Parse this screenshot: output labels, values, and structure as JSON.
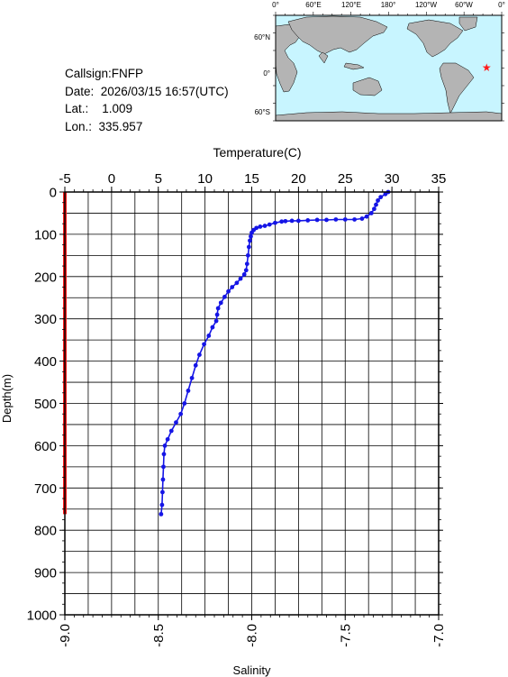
{
  "info": {
    "callsign": "Callsign:FNFP",
    "date": "Date:  2026/03/15 16:57(UTC)",
    "lat": "Lat.:    1.009",
    "lon": "Lon.:  335.957"
  },
  "map": {
    "lon_labels": [
      "0°",
      "60°E",
      "120°E",
      "180°",
      "120°W",
      "60°W",
      "0°"
    ],
    "lat_labels": [
      "60°N",
      "0°",
      "60°S"
    ],
    "ocean_color": "#c8f5ff",
    "land_color": "#b4b4b4",
    "marker": {
      "lon": 335.957,
      "lat": 1.009,
      "color": "#ff1a1a",
      "icon": "star-icon"
    }
  },
  "chart_data": {
    "type": "line",
    "title": "",
    "top_axis": {
      "label": "Temperature(C)",
      "range": [
        -5,
        35
      ],
      "ticks": [
        -5,
        0,
        5,
        10,
        15,
        20,
        25,
        30,
        35
      ]
    },
    "bottom_axis": {
      "label": "Salinity",
      "range": [
        -9.0,
        -7.0
      ],
      "ticks": [
        "-9.0",
        "-8.5",
        "-8.0",
        "-7.5",
        "-7.0"
      ]
    },
    "y_axis": {
      "label": "Depth(m)",
      "range": [
        0,
        1000
      ],
      "inverted": true,
      "ticks": [
        0,
        100,
        200,
        300,
        400,
        500,
        600,
        700,
        800,
        900,
        1000
      ]
    },
    "grid": true,
    "series": [
      {
        "axis": "temperature",
        "color": "#1515e6",
        "markers": true,
        "points": [
          [
            29.6,
            0
          ],
          [
            29.3,
            5
          ],
          [
            28.8,
            12
          ],
          [
            28.5,
            20
          ],
          [
            28.3,
            30
          ],
          [
            28.1,
            40
          ],
          [
            27.8,
            50
          ],
          [
            27.3,
            58
          ],
          [
            26.8,
            63
          ],
          [
            26.0,
            65
          ],
          [
            25.0,
            65
          ],
          [
            24.0,
            65
          ],
          [
            23.0,
            66
          ],
          [
            22.0,
            66
          ],
          [
            21.0,
            67
          ],
          [
            20.0,
            68
          ],
          [
            19.3,
            68
          ],
          [
            18.6,
            69
          ],
          [
            18.2,
            70
          ],
          [
            17.5,
            73
          ],
          [
            16.9,
            77
          ],
          [
            16.4,
            80
          ],
          [
            15.9,
            82
          ],
          [
            15.5,
            85
          ],
          [
            15.2,
            90
          ],
          [
            15.0,
            96
          ],
          [
            14.9,
            105
          ],
          [
            14.8,
            115
          ],
          [
            14.7,
            130
          ],
          [
            14.6,
            150
          ],
          [
            14.5,
            170
          ],
          [
            14.4,
            185
          ],
          [
            14.2,
            195
          ],
          [
            13.8,
            205
          ],
          [
            13.4,
            215
          ],
          [
            12.9,
            225
          ],
          [
            12.5,
            235
          ],
          [
            12.1,
            248
          ],
          [
            11.7,
            262
          ],
          [
            11.4,
            275
          ],
          [
            11.3,
            290
          ],
          [
            11.2,
            305
          ],
          [
            10.8,
            320
          ],
          [
            10.4,
            340
          ],
          [
            9.9,
            360
          ],
          [
            9.4,
            385
          ],
          [
            9.0,
            410
          ],
          [
            8.6,
            440
          ],
          [
            8.2,
            470
          ],
          [
            7.8,
            500
          ],
          [
            7.4,
            525
          ],
          [
            6.9,
            545
          ],
          [
            6.4,
            565
          ],
          [
            6.0,
            585
          ],
          [
            5.7,
            600
          ],
          [
            5.6,
            620
          ],
          [
            5.55,
            650
          ],
          [
            5.5,
            680
          ],
          [
            5.45,
            710
          ],
          [
            5.4,
            740
          ],
          [
            5.3,
            762
          ]
        ]
      },
      {
        "axis": "salinity",
        "color": "#ff1a1a",
        "markers": false,
        "points": [
          [
            -9.0,
            0
          ],
          [
            -9.0,
            762
          ]
        ]
      }
    ]
  }
}
